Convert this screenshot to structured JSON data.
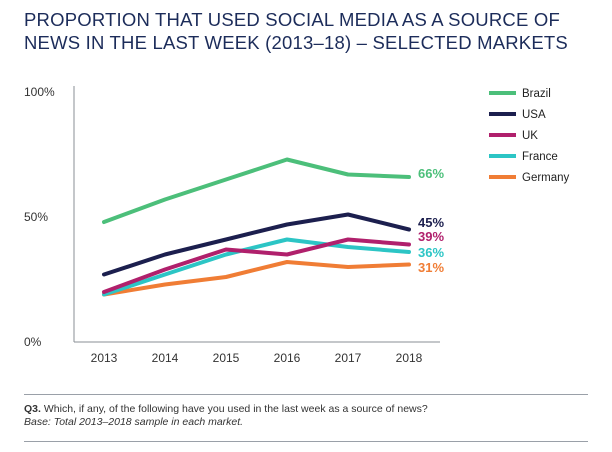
{
  "title_lines": [
    "PROPORTION THAT USED SOCIAL MEDIA AS A SOURCE OF",
    "NEWS IN THE LAST WEEK (2013–18) – SELECTED MARKETS"
  ],
  "chart_data": {
    "type": "line",
    "title": "PROPORTION THAT USED SOCIAL MEDIA AS A SOURCE OF NEWS IN THE LAST WEEK (2013–18) – SELECTED MARKETS",
    "x": [
      "2013",
      "2014",
      "2015",
      "2016",
      "2017",
      "2018"
    ],
    "ylim": [
      0,
      100
    ],
    "yticks": [
      "0%",
      "50%",
      "100%"
    ],
    "ytick_values": [
      0,
      50,
      100
    ],
    "grid": false,
    "legend_position": "top-right",
    "series": [
      {
        "name": "Brazil",
        "color": "#4cbf7a",
        "values": [
          48,
          57,
          65,
          73,
          67,
          66
        ],
        "end_label": "66%"
      },
      {
        "name": "USA",
        "color": "#1c1f4e",
        "values": [
          27,
          35,
          41,
          47,
          51,
          45
        ],
        "end_label": "45%"
      },
      {
        "name": "UK",
        "color": "#b0206c",
        "values": [
          20,
          29,
          37,
          35,
          41,
          39
        ],
        "end_label": "39%"
      },
      {
        "name": "France",
        "color": "#2cc5c5",
        "values": [
          19,
          27,
          35,
          41,
          38,
          36
        ],
        "end_label": "36%"
      },
      {
        "name": "Germany",
        "color": "#f07d35",
        "values": [
          19,
          23,
          26,
          32,
          30,
          31
        ],
        "end_label": "31%"
      }
    ]
  },
  "footnote": {
    "q_label": "Q3.",
    "question": " Which, if any, of the following have you used in the last week as a source of news?",
    "base": "Base: Total 2013–2018 sample in each market."
  }
}
